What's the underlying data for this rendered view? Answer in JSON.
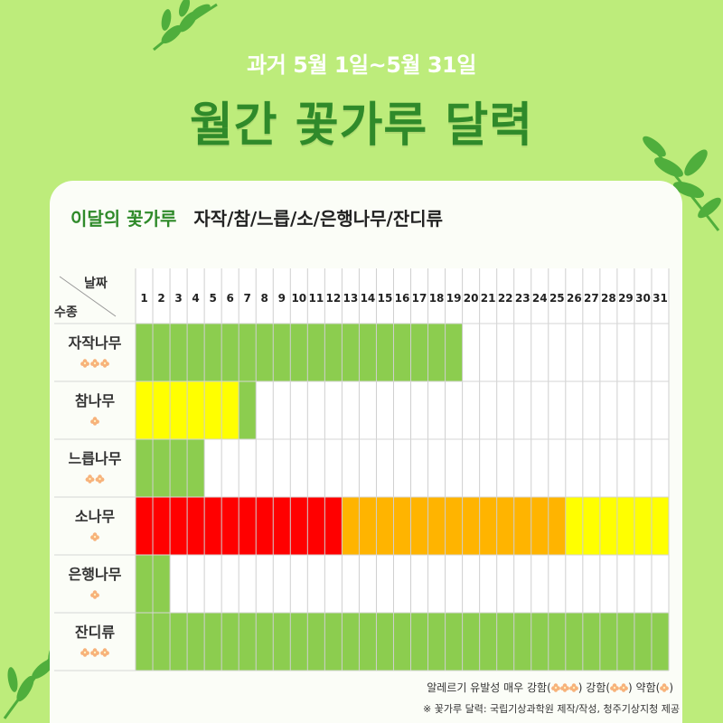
{
  "header": {
    "subtitle": "과거 5월 1일~5월 31일",
    "title": "월간 꽃가루 달력"
  },
  "section": {
    "label": "이달의 꽃가루",
    "species_list": "자작/참/느릅/소/은행나무/잔디류"
  },
  "table": {
    "corner_top": "날짜",
    "corner_bottom": "수종"
  },
  "colors": {
    "background": "#bdec7b",
    "title_green": "#2f8a2a",
    "strong_green": "#8ccd4f",
    "yellow": "#ffff00",
    "orange": "#ffb400",
    "red": "#ff0000",
    "flower": "#f7b27a"
  },
  "chart_data": {
    "type": "heatmap",
    "x": [
      "1",
      "2",
      "3",
      "4",
      "5",
      "6",
      "7",
      "8",
      "9",
      "10",
      "11",
      "12",
      "13",
      "14",
      "15",
      "16",
      "17",
      "18",
      "19",
      "20",
      "21",
      "22",
      "23",
      "24",
      "25",
      "26",
      "27",
      "28",
      "29",
      "30",
      "31"
    ],
    "rows": [
      {
        "name": "자작나무",
        "allergenicity": 3,
        "segments": [
          {
            "from": 1,
            "to": 19,
            "level": "green"
          }
        ]
      },
      {
        "name": "참나무",
        "allergenicity": 1,
        "segments": [
          {
            "from": 1,
            "to": 6,
            "level": "yellow"
          },
          {
            "from": 7,
            "to": 7,
            "level": "green"
          }
        ]
      },
      {
        "name": "느릅나무",
        "allergenicity": 2,
        "segments": [
          {
            "from": 1,
            "to": 4,
            "level": "green"
          }
        ]
      },
      {
        "name": "소나무",
        "allergenicity": 1,
        "segments": [
          {
            "from": 1,
            "to": 12,
            "level": "red"
          },
          {
            "from": 13,
            "to": 25,
            "level": "orange"
          },
          {
            "from": 26,
            "to": 31,
            "level": "yellow"
          }
        ]
      },
      {
        "name": "은행나무",
        "allergenicity": 1,
        "segments": [
          {
            "from": 1,
            "to": 2,
            "level": "green"
          }
        ]
      },
      {
        "name": "잔디류",
        "allergenicity": 3,
        "segments": [
          {
            "from": 1,
            "to": 31,
            "level": "green"
          }
        ]
      }
    ]
  },
  "legend": {
    "prefix": "알레르기 유발성 매우 강함(",
    "strong": ") 강함(",
    "weak": ") 약함(",
    "end": ")"
  },
  "source": "※ 꽃가루 달력: 국립기상과학원 제작/작성, 청주기상지청 제공"
}
